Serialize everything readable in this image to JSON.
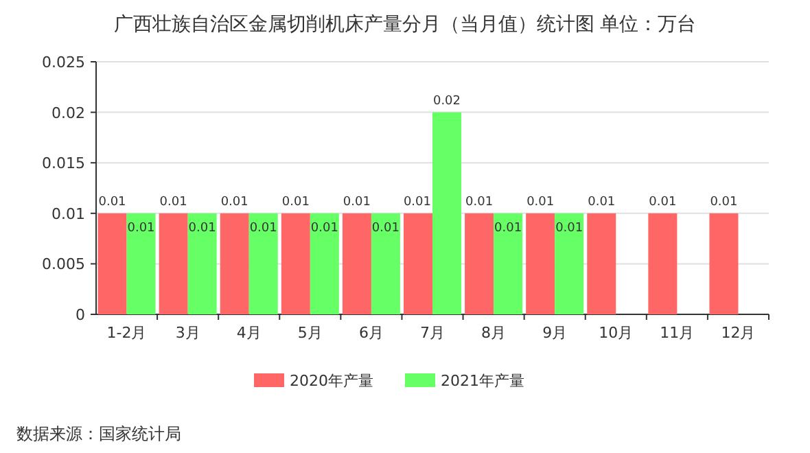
{
  "chart_data": {
    "type": "bar",
    "title": "广西壮族自治区金属切削机床产量分月（当月值）统计图 单位：万台",
    "categories": [
      "1-2月",
      "3月",
      "4月",
      "5月",
      "6月",
      "7月",
      "8月",
      "9月",
      "10月",
      "11月",
      "12月"
    ],
    "series": [
      {
        "name": "2020年产量",
        "color": "#ff6666",
        "values": [
          0.01,
          0.01,
          0.01,
          0.01,
          0.01,
          0.01,
          0.01,
          0.01,
          0.01,
          0.01,
          0.01
        ]
      },
      {
        "name": "2021年产量",
        "color": "#66ff66",
        "values": [
          0.01,
          0.01,
          0.01,
          0.01,
          0.01,
          0.02,
          0.01,
          0.01,
          null,
          null,
          null
        ]
      }
    ],
    "ylim": [
      0,
      0.025
    ],
    "yticks": [
      0,
      0.005,
      0.01,
      0.015,
      0.02,
      0.025
    ],
    "grid": "y",
    "legend": "bottom",
    "data_labels": true,
    "annotations": [
      "数据来源：国家统计局"
    ]
  }
}
